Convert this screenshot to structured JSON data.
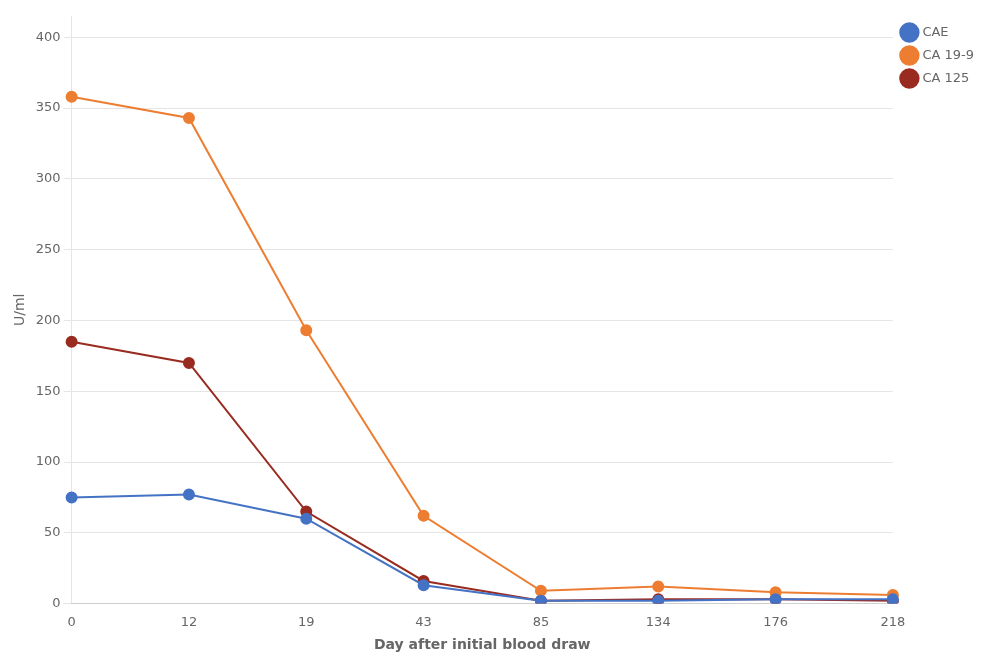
{
  "chart_data": {
    "type": "line",
    "xlabel": "Day after initial blood draw",
    "ylabel": "U/ml",
    "categories": [
      "0",
      "12",
      "19",
      "43",
      "85",
      "134",
      "176",
      "218"
    ],
    "series": [
      {
        "name": "CAE",
        "color": "#4472C4",
        "marker": "circle",
        "values": [
          75,
          77,
          60,
          13,
          2,
          2,
          3,
          3
        ]
      },
      {
        "name": "CA 19-9",
        "color": "#ED7D31",
        "marker": "circle",
        "values": [
          358,
          343,
          193,
          62,
          9,
          12,
          8,
          6
        ]
      },
      {
        "name": "CA 125",
        "color": "#992B21",
        "marker": "circle",
        "values": [
          185,
          170,
          65,
          16,
          2,
          3,
          3,
          2
        ]
      }
    ],
    "ylim": [
      0,
      415
    ],
    "yticks": [
      0,
      50,
      100,
      150,
      200,
      250,
      300,
      350,
      400
    ],
    "grid": "y",
    "legend": "upper right"
  }
}
